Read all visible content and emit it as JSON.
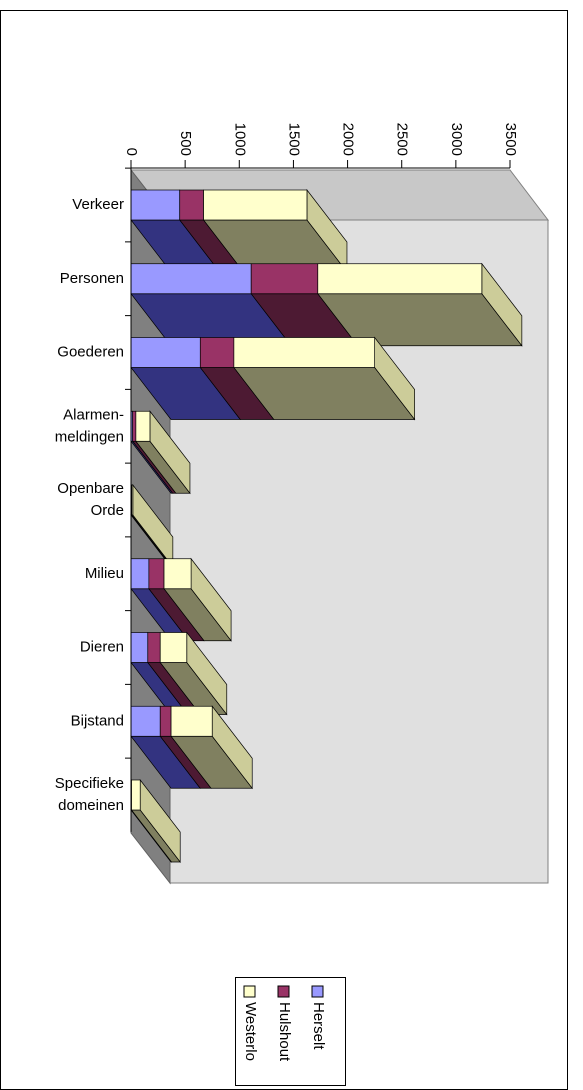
{
  "chart_data": {
    "type": "bar3d_stacked_horizontal",
    "categories": [
      "Verkeer",
      "Personen",
      "Goederen",
      "Alarmen-\nmeldingen",
      "Openbare\nOrde",
      "Milieu",
      "Dieren",
      "Bijstand",
      "Specifieke\ndomeinen"
    ],
    "series": [
      {
        "name": "Herselt",
        "color": "#9999ff",
        "side": "#333380",
        "values": [
          450,
          1110,
          640,
          15,
          5,
          165,
          155,
          270,
          2
        ]
      },
      {
        "name": "Hulshout",
        "color": "#993366",
        "side": "#4d1a33",
        "values": [
          220,
          615,
          310,
          30,
          2,
          140,
          115,
          100,
          3
        ]
      },
      {
        "name": "Westerlo",
        "color": "#ffffcc",
        "side": "#808060",
        "values": [
          955,
          1515,
          1300,
          130,
          10,
          250,
          245,
          380,
          80
        ]
      }
    ],
    "xlim": [
      0,
      3500
    ],
    "xticks": [
      0,
      500,
      1000,
      1500,
      2000,
      2500,
      3000,
      3500
    ]
  }
}
